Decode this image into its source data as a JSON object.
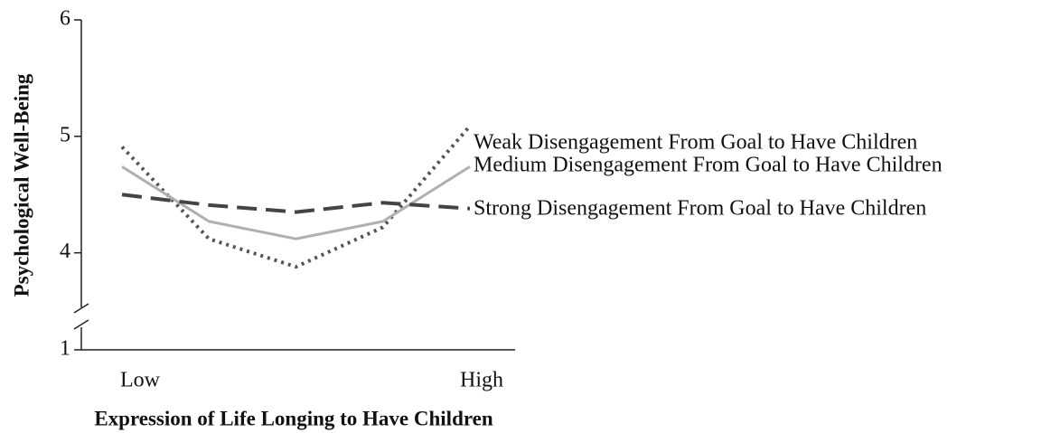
{
  "chart_data": {
    "type": "line",
    "x_label": "Expression of Life Longing to Have Children",
    "y_label": "Psychological Well-Being",
    "categories": [
      "Low",
      null,
      null,
      null,
      "High"
    ],
    "series": [
      {
        "name": "Weak Disengagement From Goal to Have Children",
        "color": "#555555",
        "style": "dotted",
        "values": [
          4.91,
          4.12,
          3.88,
          4.22,
          5.09
        ]
      },
      {
        "name": "Medium Disengagement From Goal to Have Children",
        "color": "#b0b0b0",
        "style": "solid",
        "values": [
          4.74,
          4.27,
          4.12,
          4.27,
          4.74
        ]
      },
      {
        "name": "Strong Disengagement From Goal to Have Children",
        "color": "#444444",
        "style": "dashed",
        "values": [
          4.5,
          4.41,
          4.35,
          4.43,
          4.38
        ]
      }
    ],
    "ylim": [
      1,
      6
    ],
    "ybreak": 3.4,
    "yticks": [
      1,
      4,
      5,
      6
    ],
    "legend": "right"
  }
}
